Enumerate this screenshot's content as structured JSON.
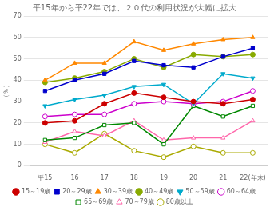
{
  "chart_data": {
    "type": "line",
    "title": "平15年から平22年では、２０代の利用状況が大幅に拡大",
    "ylabel": "（％）",
    "x": [
      15,
      16,
      17,
      18,
      19,
      20,
      21,
      22
    ],
    "xlim": [
      14.5,
      22.5
    ],
    "xticks": [
      {
        "value": 15,
        "label": "平15"
      },
      16,
      17,
      18,
      19,
      20,
      21,
      {
        "value": 22,
        "label": "22(年末)"
      }
    ],
    "ylim": [
      0,
      70
    ],
    "yticks": [
      0,
      10,
      20,
      30,
      40,
      50,
      60,
      70
    ],
    "grid": "y",
    "legend": "bottom",
    "series": [
      {
        "name": "15～19歳",
        "color": "#cc0000",
        "marker": "circle",
        "values": [
          20,
          21,
          29,
          34,
          32,
          30,
          29,
          31
        ]
      },
      {
        "name": "20～29歳",
        "color": "#0000cc",
        "marker": "square",
        "values": [
          35,
          40,
          43,
          49,
          47,
          46,
          51,
          55
        ]
      },
      {
        "name": "30～39歳",
        "color": "#ff8800",
        "marker": "triangle",
        "values": [
          40,
          48,
          48,
          58,
          54,
          57,
          59,
          60
        ]
      },
      {
        "name": "40～49歳",
        "color": "#88aa00",
        "marker": "circle",
        "values": [
          39,
          41,
          44,
          50,
          46,
          52,
          51,
          52
        ]
      },
      {
        "name": "50～59歳",
        "color": "#00aacc",
        "marker": "triangle_down",
        "values": [
          28,
          31,
          33,
          37,
          38,
          29,
          43,
          41
        ]
      },
      {
        "name": "60～64歳",
        "color": "#cc00cc",
        "marker": "circle_open",
        "values": [
          23,
          24,
          24,
          29,
          30,
          29,
          30,
          35
        ]
      },
      {
        "name": "65～69歳",
        "color": "#008800",
        "marker": "square_open",
        "values": [
          12,
          13,
          19,
          20,
          10,
          28,
          23,
          28
        ]
      },
      {
        "name": "70～79歳",
        "color": "#ff66aa",
        "marker": "triangle_open",
        "values": [
          11,
          16,
          14,
          21,
          12,
          13,
          13,
          21
        ]
      },
      {
        "name": "80歳以上",
        "color": "#aaaa00",
        "marker": "circle_open",
        "values": [
          10,
          6,
          15,
          7,
          4,
          9,
          6,
          6
        ]
      }
    ]
  }
}
